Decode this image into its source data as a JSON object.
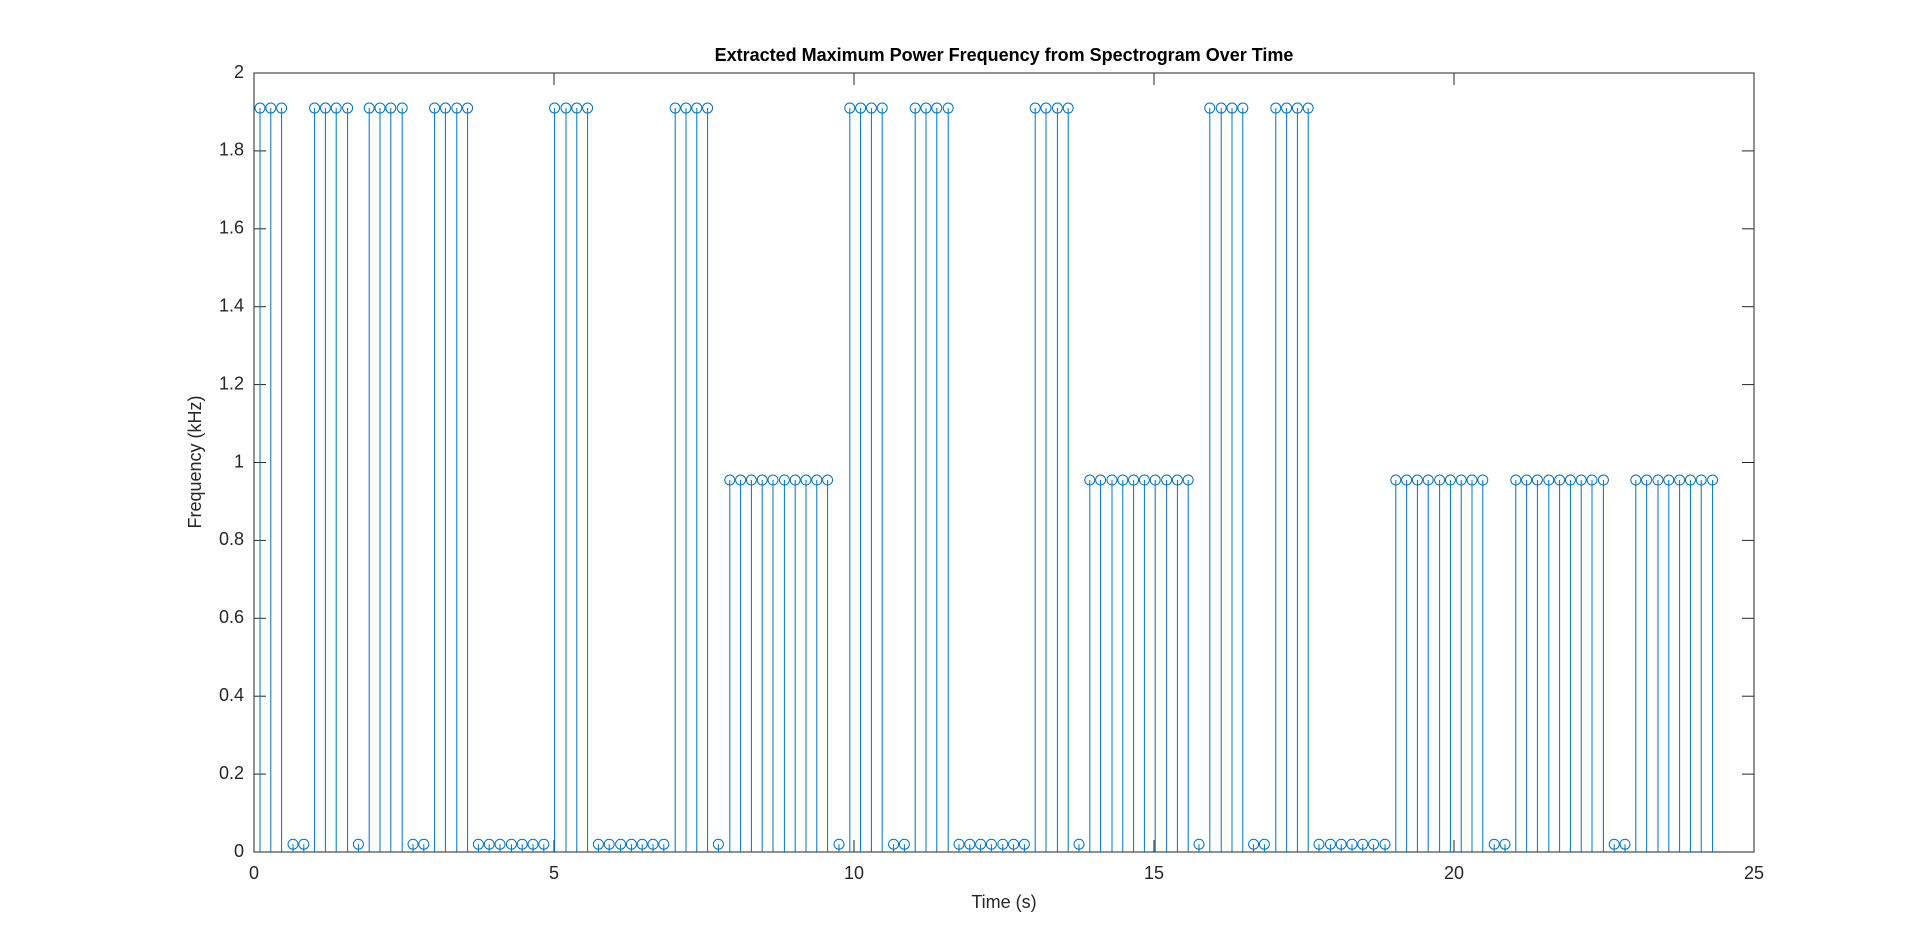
{
  "chart_data": {
    "type": "stem",
    "title": "Extracted Maximum Power Frequency from Spectrogram Over Time",
    "x_label": "Time (s)",
    "y_label": "Frequency (kHz)",
    "color": "#0072bd",
    "xlim": [
      0,
      25
    ],
    "xticks": [
      0,
      5,
      10,
      15,
      20,
      25
    ],
    "ylim": [
      0,
      2
    ],
    "yticks": [
      0,
      0.2,
      0.4,
      0.6,
      0.8,
      1,
      1.2,
      1.4,
      1.6,
      1.8,
      2
    ],
    "x": [
      0.1,
      0.28,
      0.46,
      0.65,
      0.83,
      1.01,
      1.19,
      1.37,
      1.56,
      1.74,
      1.92,
      2.1,
      2.28,
      2.47,
      2.65,
      2.83,
      3.01,
      3.19,
      3.38,
      3.56,
      3.74,
      3.92,
      4.1,
      4.29,
      4.47,
      4.65,
      4.83,
      5.01,
      5.2,
      5.38,
      5.56,
      5.74,
      5.92,
      6.11,
      6.29,
      6.47,
      6.65,
      6.83,
      7.02,
      7.2,
      7.38,
      7.56,
      7.74,
      7.93,
      8.11,
      8.29,
      8.47,
      8.65,
      8.84,
      9.02,
      9.2,
      9.38,
      9.56,
      9.75,
      9.93,
      10.11,
      10.29,
      10.47,
      10.66,
      10.84,
      11.02,
      11.2,
      11.38,
      11.57,
      11.75,
      11.93,
      12.11,
      12.29,
      12.48,
      12.66,
      12.84,
      13.02,
      13.2,
      13.39,
      13.57,
      13.75,
      13.93,
      14.11,
      14.3,
      14.48,
      14.66,
      14.84,
      15.02,
      15.21,
      15.39,
      15.57,
      15.75,
      15.93,
      16.12,
      16.3,
      16.48,
      16.66,
      16.84,
      17.03,
      17.21,
      17.39,
      17.57,
      17.75,
      17.94,
      18.12,
      18.3,
      18.48,
      18.66,
      18.85,
      19.03,
      19.21,
      19.39,
      19.57,
      19.76,
      19.94,
      20.12,
      20.3,
      20.48,
      20.67,
      20.85,
      21.03,
      21.21,
      21.39,
      21.58,
      21.76,
      21.94,
      22.12,
      22.3,
      22.49,
      22.67,
      22.85,
      23.03,
      23.21,
      23.4,
      23.58,
      23.76,
      23.94,
      24.12,
      24.31
    ],
    "values": [
      1.91,
      1.91,
      1.91,
      0.02,
      0.02,
      1.91,
      1.91,
      1.91,
      1.91,
      0.02,
      1.91,
      1.91,
      1.91,
      1.91,
      0.02,
      0.02,
      1.91,
      1.91,
      1.91,
      1.91,
      0.02,
      0.02,
      0.02,
      0.02,
      0.02,
      0.02,
      0.02,
      1.91,
      1.91,
      1.91,
      1.91,
      0.02,
      0.02,
      0.02,
      0.02,
      0.02,
      0.02,
      0.02,
      1.91,
      1.91,
      1.91,
      1.91,
      0.02,
      0.955,
      0.955,
      0.955,
      0.955,
      0.955,
      0.955,
      0.955,
      0.955,
      0.955,
      0.955,
      0.02,
      1.91,
      1.91,
      1.91,
      1.91,
      0.02,
      0.02,
      1.91,
      1.91,
      1.91,
      1.91,
      0.02,
      0.02,
      0.02,
      0.02,
      0.02,
      0.02,
      0.02,
      1.91,
      1.91,
      1.91,
      1.91,
      0.02,
      0.955,
      0.955,
      0.955,
      0.955,
      0.955,
      0.955,
      0.955,
      0.955,
      0.955,
      0.955,
      0.02,
      1.91,
      1.91,
      1.91,
      1.91,
      0.02,
      0.02,
      1.91,
      1.91,
      1.91,
      1.91,
      0.02,
      0.02,
      0.02,
      0.02,
      0.02,
      0.02,
      0.02,
      0.955,
      0.955,
      0.955,
      0.955,
      0.955,
      0.955,
      0.955,
      0.955,
      0.955,
      0.02,
      0.02,
      0.955,
      0.955,
      0.955,
      0.955,
      0.955,
      0.955,
      0.955,
      0.955,
      0.955,
      0.02,
      0.02,
      0.955,
      0.955,
      0.955,
      0.955,
      0.955,
      0.955,
      0.955,
      0.955
    ]
  }
}
